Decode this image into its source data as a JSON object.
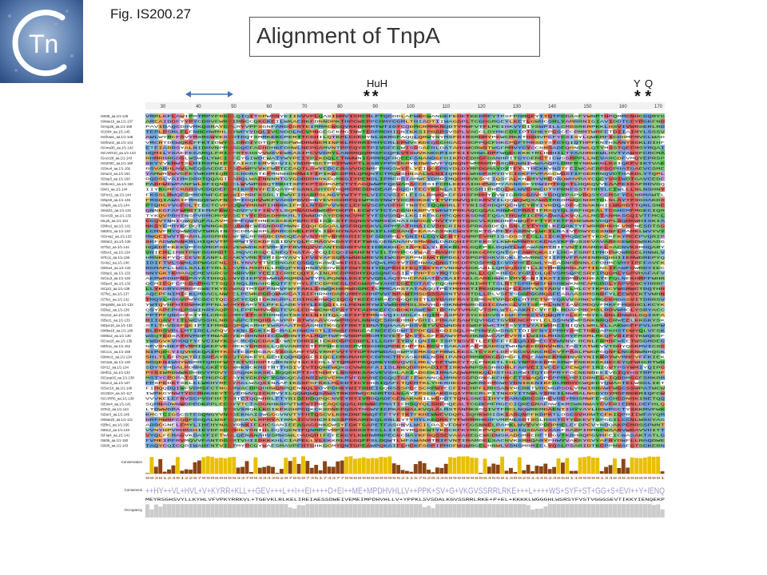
{
  "logo": {
    "text": "Tn",
    "icon": "tn-logo-icon"
  },
  "figure_label": "Fig. IS200.27",
  "title": "Alignment of TnpA",
  "markers": {
    "huh": {
      "label": "HuH",
      "stars": "**"
    },
    "yq": {
      "label": "Y Q",
      "stars": "* *"
    }
  },
  "alignment": {
    "ruler_ticks": [
      "30",
      "40",
      "50",
      "60",
      "70",
      "80",
      "90",
      "100",
      "110",
      "120",
      "130",
      "140",
      "150",
      "160",
      "170"
    ],
    "sequence_names": [
      "IS608_aa.1/1-149",
      "ISMae19_aa.1/1-137",
      "ISAsp26_aa.1/1-158",
      "IS1004_aa.1/1-145",
      "ISShaw1_aa.1/1-148",
      "ISShwo2_aa.1/1-144",
      "ISAma36_aa.1/1-142",
      "ISCARS10_aa.1/1-143",
      "ISAzo28_aa.1/1-143",
      "ISS200C_aa.1/1-160",
      "ISSnu4_aa.1/1-166",
      "ISAaz3_aa.1/1-154",
      "ISSsp3_aa.1/1-160",
      "ISSbom1_aa.1/1-150",
      "ISW1_aa.1/1-144",
      "ISPsr11_aa.1/1-144",
      "ISNps9_aa.1/1-145",
      "ISNpl6_aa.1/1-144",
      "ISHal11_aa.1/1-132",
      "ISAci1B_aa.1/1-132",
      "ISLp5_aa.1/1-164",
      "ISNhu1_aa.1/1-141",
      "ISB301_aa.1/1-140",
      "ISGma2_aa.1/1-133",
      "ISMac3_aa.1/1-136",
      "ISTfo2_aa.1/1-144",
      "ISBcn1_aa.1/1-134",
      "ISTco1_aa.1/1-136",
      "ISAlu2_aa.1/1-140",
      "ISMso4_aa.1/1-133",
      "ISNsp2_aa.1/1-133",
      "ISCsu3_aa.1/1-126",
      "ISDpo3_aa.1/1-132",
      "ISCpr2_aa.1/1-139",
      "ISTfo1_aa.1/1-137",
      "ISTfo1_aa.1/1-132",
      "ISHpi606_aa.1/1-133",
      "ISDla1_aa.1/1-136",
      "IS1212_aa.1/1-133",
      "ISBuz1_aa.1/1-133",
      "ISDpe16_aa.1/1-132",
      "ISMba18_aa.1/1-149",
      "ISMbo2_aa.1/1-136",
      "ISCsa16_aa.1/1-135",
      "ISEha1_aa.1/1-152",
      "ISCco1_aa.1/1-158",
      "ISMmo1_aa.1/1-134",
      "ISCsa6_aa.1/1-130",
      "ISH12_aa.1/1-134",
      "ISHfi11_aa.1/1-132",
      "ISCyap16_aa.1/1-138",
      "ISSoc3_aa.1/1-157",
      "ISSoc10_aa.1/1-146",
      "IS1253A_aa.1/1-117",
      "ISCARR6_aa.1/1-139",
      "ISEwo4_aa.1/1-141",
      "ISTei2_aa.1/1-144",
      "ISDsr3_aa.1/1-145",
      "ISMae20_aa.1/1-121",
      "ISBfv1_aa.1/1-156",
      "ISEtu2_aa.1/1-148",
      "ISFsp4_aa.1/1-141",
      "IS606_aa.1/1-150",
      "IS609_aa.1/1-143"
    ],
    "conservation_label": "Conservation",
    "consensus_label": "Consensus",
    "occupancy_label": "Occupancy",
    "consensus_logo": "++HY++VL+HVL+V+KYRR+KLL++GEV+++L++I++EI++++D+EI++ME+MPDHVHLLV++PPK+SV+G+VKGVSSRRLRKE+++L++++WS+SYF+ST+GG+S+EVI++Y+IENQ",
    "consensus_sequence": "MEYRSGHSVYLLKYHLVFVPKYRRKVL+TGEVKLRLKELIREIAESSDWEIVEMEIMPDHVHLLV+YPPKLSVSDALKGVSSRRLRKE+P+EL+KKKKLWGGGHLWSRSYFVSTVGGGSEVTIKKYIENQEKP"
  },
  "colors": {
    "conservation_bar": "#8b4513",
    "conservation_high": "#e8c000",
    "occupancy_fill": "#cccccc"
  }
}
